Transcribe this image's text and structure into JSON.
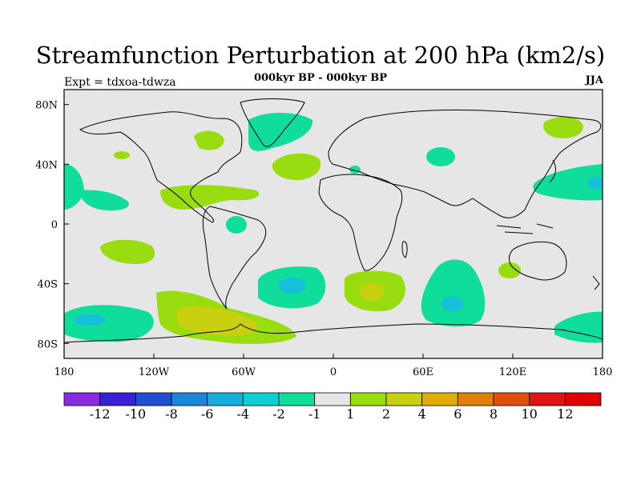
{
  "figure": {
    "title": "Streamfunction Perturbation at 200 hPa (km2/s)",
    "subtitle": "000kyr BP - 000kyr BP",
    "experiment": "Expt = tdxoa-tdwza",
    "season": "JJA"
  },
  "chart_data": {
    "type": "heatmap",
    "projection": "cylindrical equidistant",
    "xlim": [
      -180,
      180
    ],
    "ylim": [
      -90,
      90
    ],
    "x_ticks": [
      {
        "value": -180,
        "label": "180"
      },
      {
        "value": -120,
        "label": "120W"
      },
      {
        "value": -60,
        "label": "60W"
      },
      {
        "value": 0,
        "label": "0"
      },
      {
        "value": 60,
        "label": "60E"
      },
      {
        "value": 120,
        "label": "120E"
      },
      {
        "value": 180,
        "label": "180"
      }
    ],
    "y_ticks": [
      {
        "value": 80,
        "label": "80N"
      },
      {
        "value": 40,
        "label": "40N"
      },
      {
        "value": 0,
        "label": "0"
      },
      {
        "value": -40,
        "label": "40S"
      },
      {
        "value": -80,
        "label": "80S"
      }
    ],
    "colorbar": {
      "labels": [
        "-12",
        "-10",
        "-8",
        "-6",
        "-4",
        "-2",
        "-1",
        "1",
        "2",
        "4",
        "6",
        "8",
        "10",
        "12"
      ],
      "colors": [
        "#8a2be2",
        "#3a20d8",
        "#1e4fd4",
        "#1a86db",
        "#15aedc",
        "#0fcfd0",
        "#10dc9c",
        "#e6e6e6",
        "#99dc10",
        "#c8d010",
        "#e0ac08",
        "#e08008",
        "#e05008",
        "#e01414",
        "#e00000"
      ]
    },
    "anomalies": [
      {
        "lon": -165,
        "lat": 30,
        "level": "-2..-1"
      },
      {
        "lon": -145,
        "lat": -20,
        "level": "1..2"
      },
      {
        "lon": -170,
        "lat": -65,
        "level": "-4..-2"
      },
      {
        "lon": -80,
        "lat": -65,
        "level": "2..4"
      },
      {
        "lon": -30,
        "lat": -42,
        "level": "-4..-2"
      },
      {
        "lon": 25,
        "lat": -45,
        "level": "2..4"
      },
      {
        "lon": 80,
        "lat": -55,
        "level": "-4..-2"
      },
      {
        "lon": -85,
        "lat": 18,
        "level": "1..2"
      },
      {
        "lon": -15,
        "lat": 40,
        "level": "1..2"
      },
      {
        "lon": -30,
        "lat": 68,
        "level": "-2..-1"
      },
      {
        "lon": 160,
        "lat": 30,
        "level": "-4..-2"
      },
      {
        "lon": 160,
        "lat": 68,
        "level": "1..2"
      },
      {
        "lon": 70,
        "lat": 47,
        "level": "-2..-1"
      },
      {
        "lon": 175,
        "lat": -70,
        "level": "-2..-1"
      }
    ]
  }
}
